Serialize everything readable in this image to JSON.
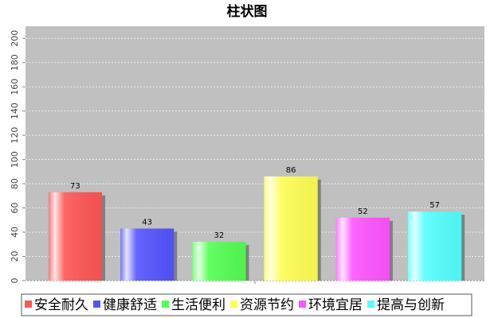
{
  "chart_data": {
    "type": "bar",
    "title": "柱状图",
    "categories": [
      "安全耐久",
      "健康舒适",
      "生活便利",
      "资源节约",
      "环境宜居",
      "提高与创新"
    ],
    "values": [
      73,
      43,
      32,
      86,
      52,
      57
    ],
    "colors": [
      "#ff5555",
      "#5555ff",
      "#55ff55",
      "#ffff55",
      "#ff55ff",
      "#55ffff"
    ],
    "ylim": [
      0,
      210
    ],
    "yticks": [
      0,
      20,
      40,
      60,
      80,
      100,
      120,
      140,
      160,
      180,
      200
    ],
    "grid": true
  }
}
